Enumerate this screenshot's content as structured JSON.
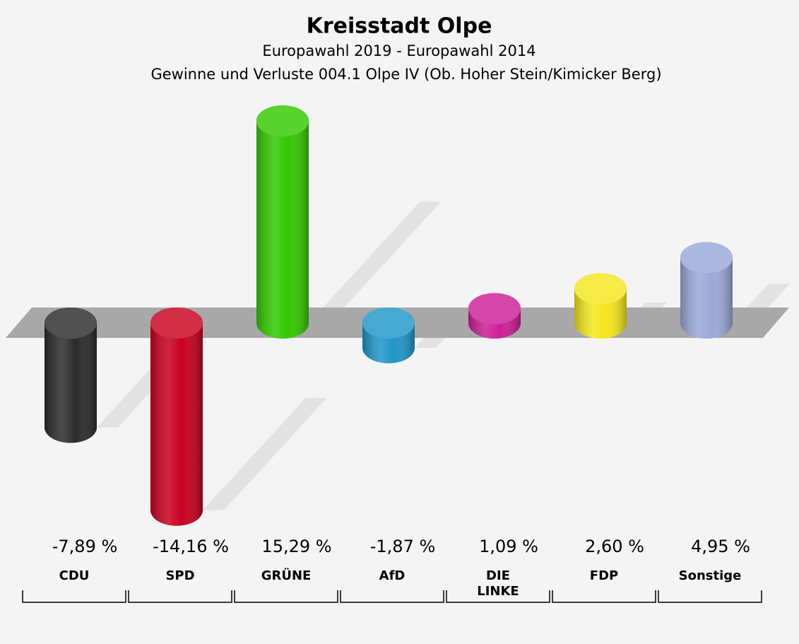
{
  "chart_data": {
    "type": "bar",
    "title": "Kreisstadt Olpe",
    "subtitle": "Europawahl 2019 - Europawahl 2014",
    "description": "Gewinne und Verluste 004.1 Olpe IV (Ob. Hoher Stein/Kimicker Berg)",
    "categories": [
      "CDU",
      "SPD",
      "GRÜNE",
      "AfD",
      "DIE LINKE",
      "FDP",
      "Sonstige"
    ],
    "values": [
      -7.89,
      -14.16,
      15.29,
      -1.87,
      1.09,
      2.6,
      4.95
    ],
    "value_labels": [
      "-7,89 %",
      "-14,16 %",
      "15,29 %",
      "-1,87 %",
      "1,09 %",
      "2,60 %",
      "4,95 %"
    ],
    "colors": [
      "#2b2b2b",
      "#c8001e",
      "#33c800",
      "#1e96c8",
      "#cc1e96",
      "#f5e61e",
      "#9aa8d8"
    ]
  }
}
